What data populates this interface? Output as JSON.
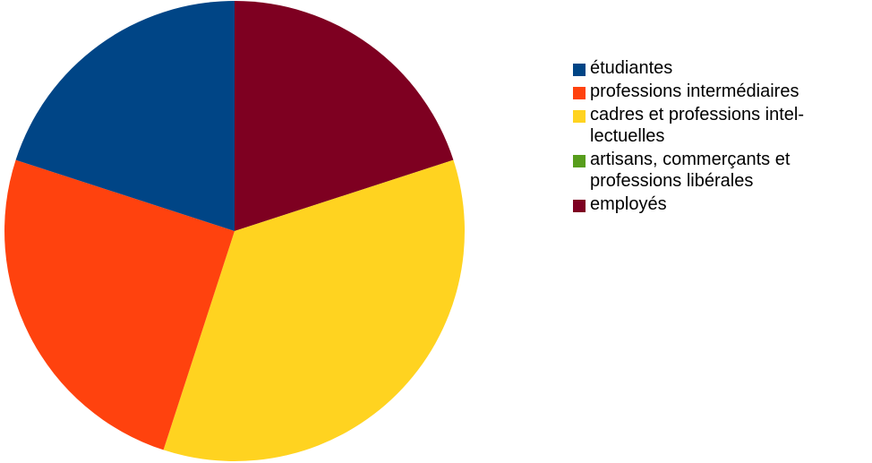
{
  "chart_data": {
    "type": "pie",
    "title": "",
    "legend_position": "right",
    "start_angle_deg": 0,
    "direction": "clockwise",
    "series": [
      {
        "name": "employés",
        "value": 20,
        "color": "#7e0021"
      },
      {
        "name": "cadres et professions intellectuelles",
        "value": 35,
        "color": "#ffd320"
      },
      {
        "name": "artisans, commerçants et professions libérales",
        "value": 0,
        "color": "#579d1c"
      },
      {
        "name": "professions intermédiaires",
        "value": 25,
        "color": "#ff420e"
      },
      {
        "name": "étudiantes",
        "value": 20,
        "color": "#004586"
      }
    ],
    "legend": [
      {
        "label": "étudiantes",
        "color": "#004586"
      },
      {
        "label": "professions intermédiaires",
        "color": "#ff420e"
      },
      {
        "label": "cadres et professions intel-lectuelles",
        "color": "#ffd320"
      },
      {
        "label": "artisans, commerçants et professions libérales",
        "color": "#579d1c"
      },
      {
        "label": "employés",
        "color": "#7e0021"
      }
    ]
  }
}
